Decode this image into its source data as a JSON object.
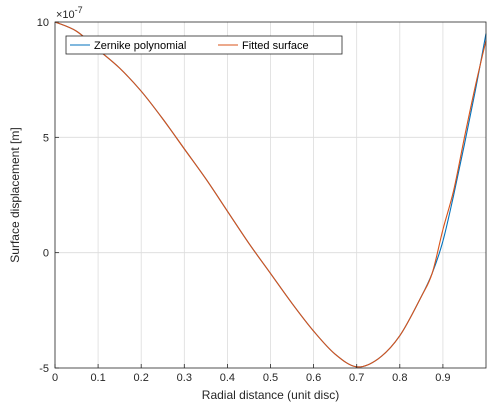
{
  "chart_data": {
    "type": "line",
    "xlabel": "Radial distance (unit disc)",
    "ylabel": "Surface displacement [m]",
    "y_exponent_base": "×10",
    "y_exponent_power": "-7",
    "xlim": [
      0,
      1
    ],
    "ylim": [
      -5,
      10
    ],
    "x_ticks": [
      0,
      0.1,
      0.2,
      0.3,
      0.4,
      0.5,
      0.6,
      0.7,
      0.8,
      0.9
    ],
    "x_tick_labels": [
      "0",
      "0.1",
      "0.2",
      "0.3",
      "0.4",
      "0.5",
      "0.6",
      "0.7",
      "0.8",
      "0.9"
    ],
    "y_ticks": [
      -5,
      0,
      5,
      10
    ],
    "y_tick_labels": [
      "-5",
      "0",
      "5",
      "10"
    ],
    "grid": true,
    "legend_position": "top-left",
    "series": [
      {
        "name": "Zernike polynomial",
        "color": "#0072BD",
        "x": [
          0,
          0.05,
          0.1,
          0.15,
          0.2,
          0.25,
          0.3,
          0.35,
          0.4,
          0.45,
          0.5,
          0.55,
          0.6,
          0.65,
          0.7,
          0.75,
          0.8,
          0.85,
          0.875,
          0.9,
          0.925,
          0.95,
          0.975,
          1.0
        ],
        "values": [
          10,
          9.6,
          8.8,
          8.0,
          7.0,
          5.8,
          4.5,
          3.2,
          1.8,
          0.4,
          -0.9,
          -2.2,
          -3.4,
          -4.4,
          -4.95,
          -4.6,
          -3.6,
          -1.9,
          -0.9,
          0.5,
          2.5,
          4.7,
          7.0,
          9.5
        ]
      },
      {
        "name": "Fitted surface",
        "color": "#D95319",
        "x": [
          0,
          0.05,
          0.1,
          0.15,
          0.2,
          0.25,
          0.3,
          0.35,
          0.4,
          0.45,
          0.5,
          0.55,
          0.6,
          0.65,
          0.7,
          0.75,
          0.8,
          0.85,
          0.875,
          0.9,
          0.925,
          0.95,
          0.975,
          1.0
        ],
        "values": [
          10,
          9.6,
          8.8,
          8.0,
          7.0,
          5.8,
          4.5,
          3.2,
          1.8,
          0.4,
          -0.9,
          -2.2,
          -3.4,
          -4.4,
          -4.95,
          -4.6,
          -3.6,
          -1.9,
          -0.9,
          1.0,
          2.7,
          5.0,
          7.2,
          9.2
        ]
      }
    ]
  }
}
